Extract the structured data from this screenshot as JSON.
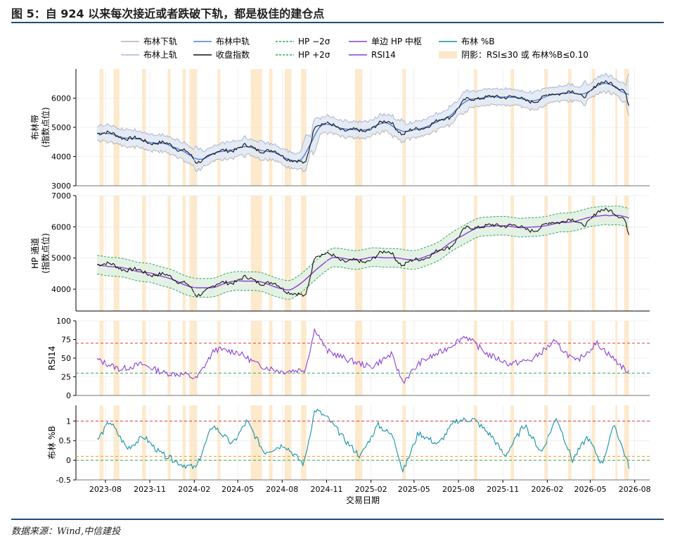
{
  "figure": {
    "title": "图 5：自 924 以来每次接近或者跌破下轨，都是极佳的建仓点",
    "source": "数据来源：Wind,中信建投"
  },
  "colors": {
    "boll_lower": "#b4b4b4",
    "boll_upper": "#a9b7d6",
    "boll_mid": "#4a7fe0",
    "close": "#111111",
    "hp_band": "#2ea55a",
    "hp_mid": "#8a3fd6",
    "rsi": "#8a3fd6",
    "pctb": "#1591a8",
    "shade": "#fde7c6",
    "ref_red": "#e03c3c",
    "ref_green": "#2ea55a",
    "ref_orange": "#f0a020",
    "band_fill": "#dfe6f2",
    "hp_fill": "#dff0e2",
    "title_rule": "#1f4e79"
  },
  "legend": [
    {
      "label": "布林下轨",
      "style": "line",
      "color": "#b4b4b4"
    },
    {
      "label": "布林中轨",
      "style": "line",
      "color": "#4a7fe0"
    },
    {
      "label": "HP −2σ",
      "style": "dash",
      "color": "#2ea55a"
    },
    {
      "label": "单边 HP 中枢",
      "style": "line",
      "color": "#8a3fd6"
    },
    {
      "label": "布林 %B",
      "style": "line",
      "color": "#1591a8"
    },
    {
      "label": "布林上轨",
      "style": "line",
      "color": "#a9b7d6"
    },
    {
      "label": "收盘指数",
      "style": "line",
      "color": "#111111"
    },
    {
      "label": "HP +2σ",
      "style": "dash",
      "color": "#2ea55a"
    },
    {
      "label": "RSI14",
      "style": "line",
      "color": "#8a3fd6"
    },
    {
      "label": "阴影：RSI≤30 或 布林%B≤0.10",
      "style": "patch",
      "color": "#fde7c6"
    }
  ],
  "chart_data": {
    "type": "line",
    "xlabel": "交易日期",
    "x_ticks": [
      "2023-08",
      "2023-11",
      "2024-02",
      "2024-05",
      "2024-08",
      "2024-11",
      "2025-02",
      "2025-05",
      "2025-08",
      "2025-11",
      "2026-02",
      "2026-05",
      "2026-08"
    ],
    "x_range": [
      "2023-06",
      "2026-09"
    ],
    "close_series": {
      "name": "收盘指数",
      "x": [
        "2023-07-15",
        "2023-08-15",
        "2023-09-15",
        "2023-10-15",
        "2023-11-15",
        "2023-12-15",
        "2024-01-15",
        "2024-02-05",
        "2024-03-01",
        "2024-04-01",
        "2024-05-15",
        "2024-06-15",
        "2024-07-15",
        "2024-08-15",
        "2024-09-18",
        "2024-10-08",
        "2024-11-15",
        "2024-12-15",
        "2025-01-15",
        "2025-02-15",
        "2025-03-15",
        "2025-04-08",
        "2025-05-15",
        "2025-06-15",
        "2025-07-15",
        "2025-08-15",
        "2025-09-15",
        "2025-10-15",
        "2025-11-15",
        "2025-12-15",
        "2026-01-15",
        "2026-02-15",
        "2026-03-15",
        "2026-04-15",
        "2026-05-15",
        "2026-06-15",
        "2026-07-10",
        "2026-07-20"
      ],
      "y": [
        4850,
        4750,
        4650,
        4550,
        4480,
        4380,
        4200,
        3750,
        4050,
        4180,
        4350,
        4250,
        4150,
        3950,
        3700,
        5150,
        5050,
        4900,
        4850,
        5100,
        5200,
        4750,
        5000,
        5150,
        5400,
        5900,
        6050,
        6000,
        6100,
        5900,
        5950,
        6150,
        6250,
        6050,
        6450,
        6550,
        6250,
        5700
      ]
    },
    "panels": [
      {
        "name": "布林带",
        "ylabel": "布林带\n(指数点位)",
        "ylim": [
          3000,
          7000
        ],
        "yticks": [
          3000,
          4000,
          5000,
          6000
        ],
        "series": [
          {
            "name": "布林中轨",
            "offset": 0,
            "smooth": 6
          },
          {
            "name": "布林上轨",
            "offset": 220,
            "smooth": 4
          },
          {
            "name": "布林下轨",
            "offset": -220,
            "smooth": 4
          }
        ]
      },
      {
        "name": "HP 通道",
        "ylabel": "HP 通道\n(指数点位)",
        "ylim": [
          3300,
          7000
        ],
        "yticks": [
          4000,
          5000,
          6000,
          7000
        ],
        "series": [
          {
            "name": "单边 HP 中枢"
          },
          {
            "name": "HP +2σ",
            "band": 300
          },
          {
            "name": "HP −2σ",
            "band": -300
          }
        ]
      },
      {
        "name": "RSI14",
        "ylabel": "RSI14",
        "ylim": [
          0,
          100
        ],
        "yticks": [
          0,
          25,
          50,
          75,
          100
        ],
        "ref_lines": [
          {
            "y": 70,
            "color": "#e03c3c"
          },
          {
            "y": 30,
            "color": "#2ea55a"
          }
        ],
        "x": [
          "2023-07-15",
          "2023-09-01",
          "2023-10-15",
          "2023-12-01",
          "2024-01-15",
          "2024-02-05",
          "2024-03-15",
          "2024-05-01",
          "2024-06-15",
          "2024-08-01",
          "2024-09-18",
          "2024-10-08",
          "2024-11-01",
          "2024-12-15",
          "2025-02-01",
          "2025-03-15",
          "2025-04-08",
          "2025-05-15",
          "2025-07-01",
          "2025-08-15",
          "2025-10-01",
          "2025-11-15",
          "2026-01-01",
          "2026-02-15",
          "2026-04-01",
          "2026-05-15",
          "2026-06-30",
          "2026-07-20"
        ],
        "y": [
          48,
          35,
          42,
          30,
          28,
          22,
          62,
          58,
          40,
          32,
          35,
          90,
          60,
          48,
          38,
          55,
          18,
          45,
          60,
          80,
          55,
          42,
          48,
          72,
          45,
          70,
          42,
          30
        ]
      },
      {
        "name": "布林 %B",
        "ylabel": "布林 %B",
        "ylim": [
          -0.5,
          1.4
        ],
        "yticks": [
          -0.5,
          0.0,
          0.5,
          1.0
        ],
        "ref_lines": [
          {
            "y": 1.0,
            "color": "#e03c3c"
          },
          {
            "y": 0.1,
            "color": "#f0a020"
          },
          {
            "y": 0.0,
            "color": "#2ea55a"
          }
        ],
        "x": [
          "2023-07-15",
          "2023-08-10",
          "2023-09-15",
          "2023-10-20",
          "2023-11-20",
          "2024-01-05",
          "2024-02-05",
          "2024-03-10",
          "2024-04-20",
          "2024-05-20",
          "2024-06-25",
          "2024-08-05",
          "2024-09-15",
          "2024-10-08",
          "2024-11-05",
          "2024-12-10",
          "2025-01-10",
          "2025-02-15",
          "2025-03-20",
          "2025-04-08",
          "2025-05-10",
          "2025-06-20",
          "2025-07-25",
          "2025-09-01",
          "2025-10-10",
          "2025-11-05",
          "2025-12-15",
          "2026-01-20",
          "2026-02-20",
          "2026-03-25",
          "2026-04-25",
          "2026-05-25",
          "2026-06-20",
          "2026-07-20"
        ],
        "y": [
          0.5,
          1.0,
          0.3,
          0.6,
          0.2,
          -0.1,
          -0.2,
          0.9,
          0.4,
          1.0,
          0.2,
          0.4,
          -0.1,
          1.3,
          1.05,
          0.5,
          0.1,
          0.9,
          0.6,
          -0.3,
          0.7,
          0.4,
          1.0,
          1.05,
          0.6,
          0.1,
          0.9,
          0.2,
          1.1,
          0.0,
          0.6,
          -0.1,
          0.9,
          -0.15
        ]
      }
    ],
    "shaded_periods": [
      [
        "2023-07-20",
        "2023-07-28"
      ],
      [
        "2023-08-18",
        "2023-08-30"
      ],
      [
        "2023-10-16",
        "2023-10-24"
      ],
      [
        "2023-12-08",
        "2023-12-14"
      ],
      [
        "2024-01-08",
        "2024-01-14"
      ],
      [
        "2024-01-22",
        "2024-02-07"
      ],
      [
        "2024-03-20",
        "2024-03-26"
      ],
      [
        "2024-05-28",
        "2024-06-20"
      ],
      [
        "2024-07-05",
        "2024-07-12"
      ],
      [
        "2024-08-06",
        "2024-08-20"
      ],
      [
        "2024-09-09",
        "2024-09-20"
      ],
      [
        "2024-12-30",
        "2025-01-14"
      ],
      [
        "2025-04-07",
        "2025-04-14"
      ],
      [
        "2025-09-02",
        "2025-09-09"
      ],
      [
        "2025-11-17",
        "2025-11-24"
      ],
      [
        "2026-01-26",
        "2026-02-02"
      ],
      [
        "2026-03-16",
        "2026-03-23"
      ],
      [
        "2026-05-04",
        "2026-05-11"
      ],
      [
        "2026-06-22",
        "2026-06-26"
      ],
      [
        "2026-07-10",
        "2026-07-20"
      ]
    ]
  }
}
